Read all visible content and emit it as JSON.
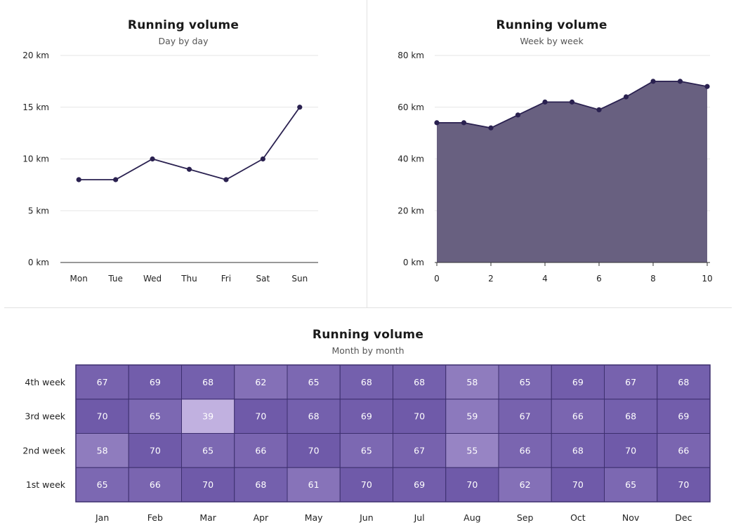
{
  "chart_data": [
    {
      "type": "line",
      "title": "Running volume",
      "subtitle": "Day by day",
      "categories": [
        "Mon",
        "Tue",
        "Wed",
        "Thu",
        "Fri",
        "Sat",
        "Sun"
      ],
      "values": [
        8,
        8,
        10,
        9,
        8,
        10,
        15
      ],
      "y_ticks": [
        0,
        5,
        10,
        15,
        20
      ],
      "y_tick_labels": [
        "0 km",
        "5 km",
        "10 km",
        "15 km",
        "20 km"
      ],
      "ylim": [
        0,
        20
      ],
      "grid": true,
      "color": "#2a2150"
    },
    {
      "type": "area",
      "title": "Running volume",
      "subtitle": "Week by week",
      "x": [
        0,
        1,
        2,
        3,
        4,
        5,
        6,
        7,
        8,
        9,
        10
      ],
      "values": [
        54,
        54,
        52,
        57,
        62,
        62,
        59,
        64,
        70,
        70,
        68
      ],
      "x_ticks": [
        0,
        2,
        4,
        6,
        8,
        10
      ],
      "x_tick_labels": [
        "0",
        "2",
        "4",
        "6",
        "8",
        "10"
      ],
      "y_ticks": [
        0,
        20,
        40,
        60,
        80
      ],
      "y_tick_labels": [
        "0 km",
        "20 km",
        "40 km",
        "60 km",
        "80 km"
      ],
      "ylim": [
        0,
        80
      ],
      "xlim": [
        0,
        10
      ],
      "grid": true,
      "color": "#2a2150",
      "fill_color": "#686080"
    },
    {
      "type": "heatmap",
      "title": "Running volume",
      "subtitle": "Month by month",
      "columns": [
        "Jan",
        "Feb",
        "Mar",
        "Apr",
        "May",
        "Jun",
        "Jul",
        "Aug",
        "Sep",
        "Oct",
        "Nov",
        "Dec"
      ],
      "rows": [
        "4th week",
        "3rd week",
        "2nd week",
        "1st week"
      ],
      "values": [
        [
          67,
          69,
          68,
          62,
          65,
          68,
          68,
          58,
          65,
          69,
          67,
          68
        ],
        [
          70,
          65,
          39,
          70,
          68,
          69,
          70,
          59,
          67,
          66,
          68,
          69
        ],
        [
          58,
          70,
          65,
          66,
          70,
          65,
          67,
          55,
          66,
          68,
          70,
          66
        ],
        [
          65,
          66,
          70,
          68,
          61,
          70,
          69,
          70,
          62,
          70,
          65,
          70
        ]
      ],
      "value_range": [
        39,
        70
      ],
      "color_low": "#c1b1e0",
      "color_high": "#6f5aa9",
      "border_color": "#3d2f6e"
    }
  ]
}
